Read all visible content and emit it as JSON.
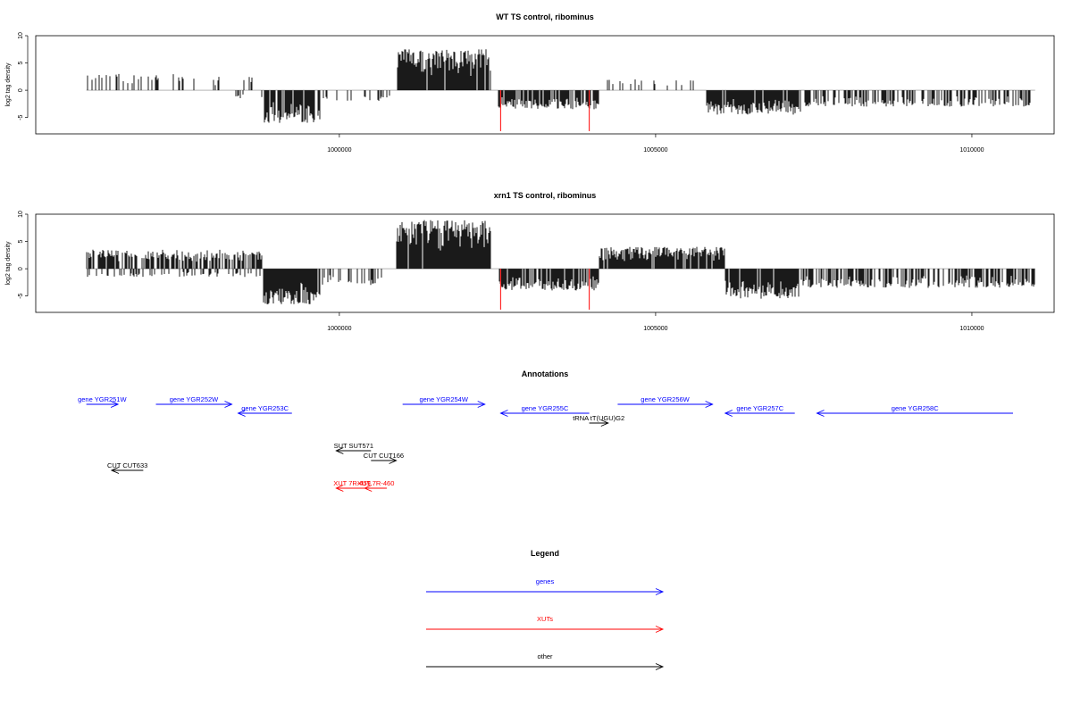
{
  "chart_data": [
    {
      "type": "bar",
      "title": "WT TS control, ribominus",
      "ylabel": "log2 tag density",
      "ylim": [
        -8,
        10
      ],
      "xlim": [
        995200,
        1011300
      ],
      "x_ticks": [
        1000000,
        1005000,
        1010000
      ],
      "x_tick_labels": [
        "1000000",
        "1005000",
        "1010000"
      ],
      "y_ticks": [
        -5,
        0,
        5,
        10
      ],
      "y_tick_labels": [
        "-5",
        "0",
        "5",
        "10"
      ],
      "grid": false,
      "segments": [
        {
          "strand": "+",
          "from": 996000,
          "to": 997400,
          "max": 3,
          "density": 0.22
        },
        {
          "strand": "+",
          "from": 997400,
          "to": 998700,
          "max": 2.5,
          "density": 0.15
        },
        {
          "strand": "-",
          "from": 998300,
          "to": 998800,
          "max": 1.5,
          "density": 0.15
        },
        {
          "strand": "-",
          "from": 998800,
          "to": 999700,
          "max": 6,
          "density": 0.9
        },
        {
          "strand": "-",
          "from": 999700,
          "to": 1000800,
          "max": 2,
          "density": 0.2
        },
        {
          "strand": "+",
          "from": 1000900,
          "to": 1002400,
          "max": 7.5,
          "density": 0.95
        },
        {
          "strand": "-",
          "from": 1002500,
          "to": 1004100,
          "max": 3.5,
          "density": 0.8
        },
        {
          "strand": "+",
          "from": 1004200,
          "to": 1005800,
          "max": 2,
          "density": 0.12
        },
        {
          "strand": "-",
          "from": 1005800,
          "to": 1007300,
          "max": 4.5,
          "density": 0.85
        },
        {
          "strand": "-",
          "from": 1007300,
          "to": 1011000,
          "max": 3,
          "density": 0.45
        }
      ],
      "red_spikes": [
        {
          "x": 1002550,
          "value": -7.5
        },
        {
          "x": 1003950,
          "value": -7.5
        }
      ]
    },
    {
      "type": "bar",
      "title": "xrn1 TS control, ribominus",
      "ylabel": "log2 tag density",
      "ylim": [
        -8,
        10
      ],
      "xlim": [
        995200,
        1011300
      ],
      "x_ticks": [
        1000000,
        1005000,
        1010000
      ],
      "x_tick_labels": [
        "1000000",
        "1005000",
        "1010000"
      ],
      "y_ticks": [
        -5,
        0,
        5,
        10
      ],
      "y_tick_labels": [
        "-5",
        "0",
        "5",
        "10"
      ],
      "grid": false,
      "segments": [
        {
          "strand": "+",
          "from": 996000,
          "to": 998800,
          "max": 3.5,
          "density": 0.6
        },
        {
          "strand": "-",
          "from": 996000,
          "to": 998800,
          "max": 1.5,
          "density": 0.25
        },
        {
          "strand": "-",
          "from": 998800,
          "to": 999700,
          "max": 6.5,
          "density": 0.95
        },
        {
          "strand": "-",
          "from": 999700,
          "to": 1000800,
          "max": 3,
          "density": 0.4
        },
        {
          "strand": "+",
          "from": 1000900,
          "to": 1002400,
          "max": 9,
          "density": 0.97
        },
        {
          "strand": "-",
          "from": 1002500,
          "to": 1004100,
          "max": 4,
          "density": 0.85
        },
        {
          "strand": "+",
          "from": 1004100,
          "to": 1006100,
          "max": 4,
          "density": 0.9
        },
        {
          "strand": "-",
          "from": 1006100,
          "to": 1007300,
          "max": 5.5,
          "density": 0.9
        },
        {
          "strand": "-",
          "from": 1007300,
          "to": 1011000,
          "max": 3.5,
          "density": 0.6
        }
      ],
      "red_spikes": [
        {
          "x": 1002550,
          "value": -7.5
        },
        {
          "x": 1003950,
          "value": -7.5
        }
      ]
    }
  ],
  "annotations": {
    "title": "Annotations",
    "items": [
      {
        "label": "gene YGR251W",
        "from": 996000,
        "to": 996500,
        "row": 0,
        "dir": "right",
        "kind": "genes"
      },
      {
        "label": "gene YGR252W",
        "from": 997100,
        "to": 998300,
        "row": 0,
        "dir": "right",
        "kind": "genes"
      },
      {
        "label": "gene YGR253C",
        "from": 998400,
        "to": 999250,
        "row": 1,
        "dir": "left",
        "kind": "genes"
      },
      {
        "label": "gene YGR254W",
        "from": 1001000,
        "to": 1002300,
        "row": 0,
        "dir": "right",
        "kind": "genes"
      },
      {
        "label": "gene YGR255C",
        "from": 1002550,
        "to": 1003950,
        "row": 1,
        "dir": "left",
        "kind": "genes"
      },
      {
        "label": "gene YGR256W",
        "from": 1004400,
        "to": 1005900,
        "row": 0,
        "dir": "right",
        "kind": "genes"
      },
      {
        "label": "gene YGR257C",
        "from": 1006100,
        "to": 1007200,
        "row": 1,
        "dir": "left",
        "kind": "genes"
      },
      {
        "label": "gene YGR258C",
        "from": 1007550,
        "to": 1010650,
        "row": 1,
        "dir": "left",
        "kind": "genes"
      },
      {
        "label": "tRNA tT(UGU)G2",
        "from": 1003950,
        "to": 1004250,
        "row": 2,
        "dir": "right",
        "kind": "other"
      },
      {
        "label": "SUT SUT571",
        "from": 999950,
        "to": 1000500,
        "row": 4,
        "dir": "left",
        "kind": "other"
      },
      {
        "label": "CUT CUT166",
        "from": 1000500,
        "to": 1000900,
        "row": 5,
        "dir": "right",
        "kind": "other"
      },
      {
        "label": "CUT CUT633",
        "from": 996400,
        "to": 996900,
        "row": 6,
        "dir": "left",
        "kind": "other"
      },
      {
        "label": "XUT 7R-459",
        "from": 999950,
        "to": 1000450,
        "row": 7,
        "dir": "left",
        "kind": "XUTs"
      },
      {
        "label": "XUT 7R-460",
        "from": 1000400,
        "to": 1000750,
        "row": 7,
        "dir": "left",
        "kind": "XUTs"
      }
    ]
  },
  "legend": {
    "title": "Legend",
    "entries": [
      {
        "label": "genes",
        "color": "#0000ff"
      },
      {
        "label": "XUTs",
        "color": "#ff0000"
      },
      {
        "label": "other",
        "color": "#000000"
      }
    ]
  },
  "colors": {
    "genes": "#0000ff",
    "XUTs": "#ff0000",
    "other": "#000000",
    "spike": "#ff2a2a",
    "bars": "#000000"
  }
}
